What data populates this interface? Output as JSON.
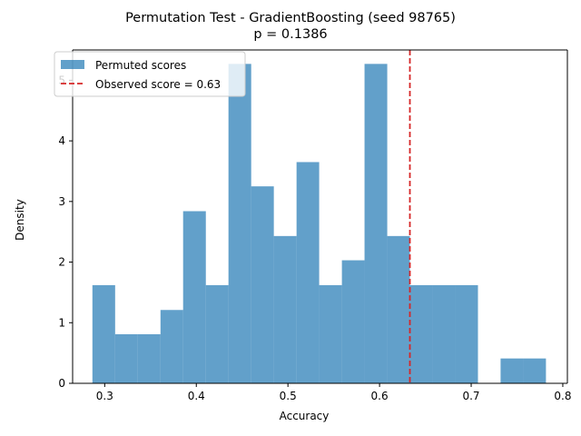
{
  "chart_data": {
    "type": "bar",
    "title": "Permutation Test - GradientBoosting (seed 98765)",
    "subtitle": "p = 0.1386",
    "xlabel": "Accuracy",
    "ylabel": "Density",
    "xlim": [
      0.265,
      0.805
    ],
    "ylim": [
      0,
      5.5
    ],
    "xticks": [
      0.3,
      0.4,
      0.5,
      0.6,
      0.7,
      0.8
    ],
    "xtick_labels": [
      "0.3",
      "0.4",
      "0.5",
      "0.6",
      "0.7",
      "0.8"
    ],
    "yticks": [
      0,
      1,
      2,
      3,
      4,
      5
    ],
    "ytick_labels": [
      "0",
      "1",
      "2",
      "3",
      "4",
      "5"
    ],
    "grid": false,
    "legend_position": "top-left",
    "bin_edges": [
      0.2866,
      0.3114,
      0.3361,
      0.3609,
      0.3856,
      0.4104,
      0.4351,
      0.4599,
      0.4846,
      0.5094,
      0.5341,
      0.5589,
      0.5836,
      0.6084,
      0.6331,
      0.6579,
      0.6826,
      0.7074,
      0.7321,
      0.7569,
      0.7816
    ],
    "series": [
      {
        "name": "Permuted scores",
        "color": "#1f77b4",
        "opacity": 0.7,
        "values": [
          1.62,
          0.81,
          0.81,
          1.21,
          2.84,
          1.62,
          5.27,
          3.25,
          2.43,
          3.65,
          1.62,
          2.03,
          5.27,
          2.43,
          1.62,
          1.62,
          1.62,
          0.0,
          0.41,
          0.41
        ]
      }
    ],
    "reference_line": {
      "label": "Observed score = 0.63",
      "x": 0.6331,
      "color": "#d62728",
      "style": "dashed"
    }
  }
}
